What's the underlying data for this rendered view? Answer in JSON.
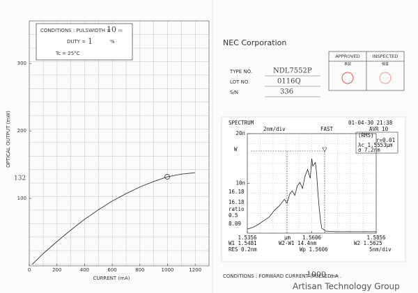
{
  "li_chart": {
    "type": "line",
    "y_label": "OPTICAL OUTPUT (mW)",
    "x_label": "CURRENT (mA)",
    "annotation": "132",
    "conditions": [
      "CONDITIONS : PULSWIDTH =",
      "10",
      "ns",
      "DUTY =",
      "1",
      "%",
      "Tc = 25°C"
    ],
    "x": [
      20,
      100,
      200,
      300,
      400,
      500,
      600,
      700,
      800,
      900,
      1000,
      1100,
      1200
    ],
    "values": [
      2,
      18,
      36,
      53,
      69,
      83,
      96,
      107,
      117,
      125,
      132,
      136,
      138
    ],
    "color": "#333333",
    "xlim": [
      0,
      1300
    ],
    "ylim": [
      0,
      360
    ],
    "xticks": [
      0,
      200,
      400,
      600,
      800,
      1000,
      1200
    ],
    "yticks": [
      100,
      200,
      300
    ]
  },
  "header": {
    "company": "NEC Corporation",
    "type_label": "TYPE NO.",
    "type_value": "NDL7552P",
    "lot_label": "LOT NO.",
    "lot_value": "0116Q",
    "sn_label": "S/N",
    "sn_value": "336",
    "approved": "APPROVED",
    "approved_jp": "承認",
    "inspected": "INSPECTED",
    "inspected_jp": "検査"
  },
  "spectrum": {
    "type": "line",
    "header": [
      "SPECTRUM",
      "01-04-30 21:38",
      "2nm/div",
      "FAST",
      "AVR 10"
    ],
    "info": [
      "(RMS)",
      "r=0.01",
      "λc 1.5553μm",
      "σ 7.2nm"
    ],
    "side_labels": [
      "W",
      "16.18",
      "16.18",
      "ratio",
      "0.5",
      "8.09"
    ],
    "x_unit": "μm",
    "footer": [
      "W1 1.5481",
      "W2-W1 14.4nm",
      "W2 1.5625",
      "RES 0.2nm",
      "Wp 1.5606",
      "5nm/div"
    ],
    "x": [
      1.5356,
      1.538,
      1.54,
      1.542,
      1.544,
      1.546,
      1.548,
      1.55,
      1.551,
      1.552,
      1.553,
      1.554,
      1.555,
      1.556,
      1.557,
      1.558,
      1.559,
      1.56,
      1.5606,
      1.561,
      1.562,
      1.5625,
      1.563,
      1.5635,
      1.564,
      1.5645,
      1.566,
      1.57,
      1.5856
    ],
    "values": [
      0.8,
      1.2,
      1.8,
      2.5,
      3.2,
      4.5,
      5.5,
      6.8,
      6.0,
      7.8,
      8.5,
      7.6,
      9.5,
      10.2,
      9.0,
      11.5,
      12.8,
      11.0,
      15.0,
      13.5,
      14.2,
      12.0,
      8.0,
      5.0,
      2.5,
      1.0,
      0.4,
      0.3,
      0.3
    ],
    "color": "#222222",
    "xlim": [
      1.5356,
      1.5856
    ],
    "ylim": [
      0,
      20
    ],
    "xticks": [
      1.5356,
      1.5606,
      1.5856
    ],
    "yticks": [
      {
        "value": 20,
        "label": "20n"
      },
      {
        "value": 10,
        "label": "10n"
      }
    ]
  },
  "conditions": {
    "label": "CONDITIONS : FORWARD CURRENT (PULSED) =",
    "current": "1000",
    "unit": "mA ."
  },
  "footer": "Artisan Technology Group"
}
